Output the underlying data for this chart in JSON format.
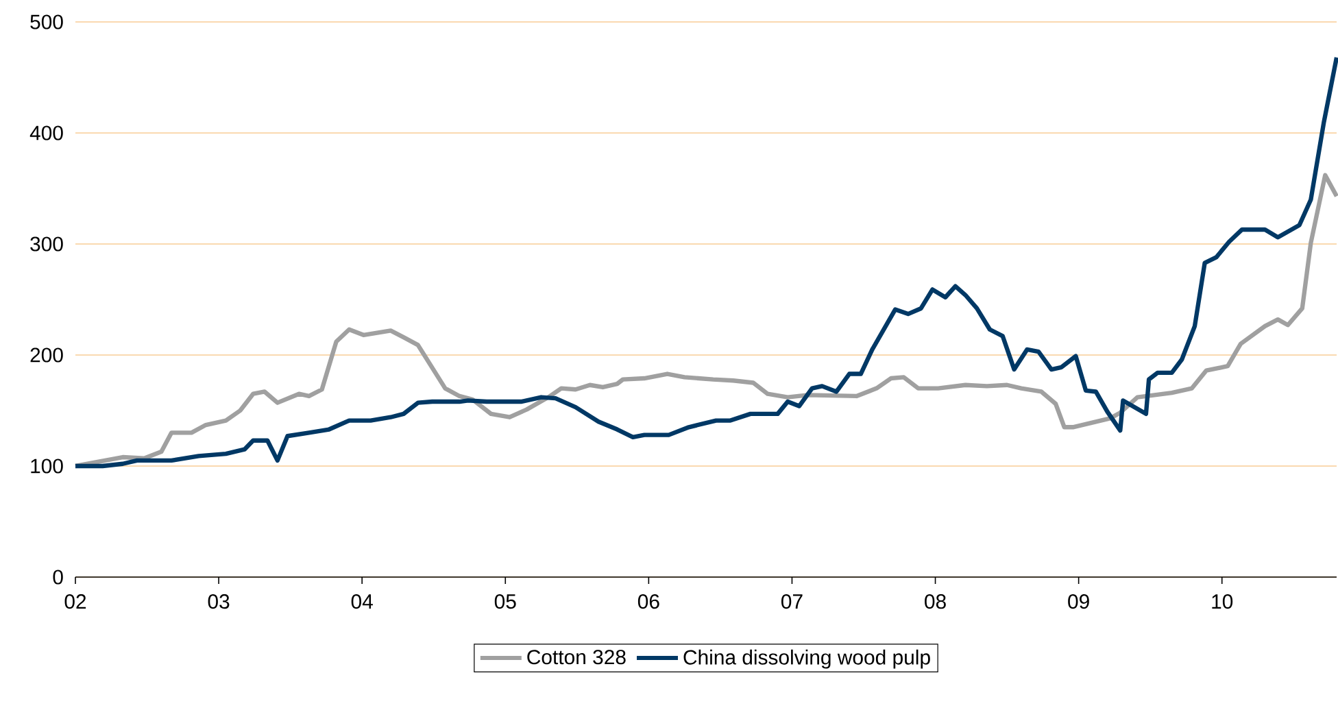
{
  "chart_data": {
    "type": "line",
    "xlim": [
      2,
      10.8
    ],
    "ylim": [
      0,
      500
    ],
    "xticks": [
      {
        "value": 2,
        "label": "02"
      },
      {
        "value": 3,
        "label": "03"
      },
      {
        "value": 4,
        "label": "04"
      },
      {
        "value": 5,
        "label": "05"
      },
      {
        "value": 6,
        "label": "06"
      },
      {
        "value": 7,
        "label": "07"
      },
      {
        "value": 8,
        "label": "08"
      },
      {
        "value": 9,
        "label": "09"
      },
      {
        "value": 10,
        "label": "10"
      }
    ],
    "yticks": [
      0,
      100,
      200,
      300,
      400,
      500
    ],
    "grid": "y",
    "legend": "bottom",
    "series": [
      {
        "name": "Cotton 328",
        "color": "#a0a0a0",
        "x": [
          2.0,
          2.33,
          2.48,
          2.6,
          2.67,
          2.81,
          2.91,
          3.05,
          3.15,
          3.24,
          3.32,
          3.41,
          3.56,
          3.63,
          3.72,
          3.82,
          3.91,
          4.01,
          4.2,
          4.29,
          4.39,
          4.58,
          4.68,
          4.77,
          4.9,
          5.03,
          5.15,
          5.3,
          5.39,
          5.49,
          5.59,
          5.68,
          5.78,
          5.82,
          5.97,
          6.13,
          6.25,
          6.45,
          6.59,
          6.73,
          6.83,
          6.97,
          7.11,
          7.45,
          7.59,
          7.69,
          7.78,
          7.88,
          8.02,
          8.21,
          8.36,
          8.5,
          8.6,
          8.74,
          8.84,
          8.9,
          8.96,
          9.22,
          9.29,
          9.41,
          9.65,
          9.79,
          9.89,
          10.04,
          10.13,
          10.3,
          10.39,
          10.46,
          10.56,
          10.62,
          10.72,
          10.8
        ],
        "values": [
          100,
          108,
          107,
          113,
          130,
          130,
          137,
          141,
          150,
          165,
          167,
          157,
          165,
          163,
          169,
          212,
          223,
          218,
          222,
          216,
          209,
          170,
          163,
          160,
          147,
          144,
          151,
          162,
          170,
          169,
          173,
          171,
          174,
          178,
          179,
          183,
          180,
          178,
          177,
          175,
          165,
          162,
          164,
          163,
          170,
          179,
          180,
          170,
          170,
          173,
          172,
          173,
          170,
          167,
          156,
          135,
          135,
          143,
          148,
          162,
          166,
          170,
          186,
          190,
          210,
          226,
          232,
          227,
          242,
          301,
          362,
          343
        ]
      },
      {
        "name": "China dissolving wood pulp",
        "color": "#003865",
        "x": [
          2.0,
          2.19,
          2.33,
          2.43,
          2.67,
          2.86,
          3.05,
          3.18,
          3.24,
          3.34,
          3.41,
          3.48,
          3.63,
          3.77,
          3.91,
          4.06,
          4.2,
          4.29,
          4.39,
          4.49,
          4.68,
          4.74,
          4.87,
          5.11,
          5.25,
          5.35,
          5.49,
          5.65,
          5.78,
          5.89,
          5.97,
          6.14,
          6.28,
          6.47,
          6.57,
          6.71,
          6.9,
          6.97,
          7.05,
          7.14,
          7.21,
          7.31,
          7.4,
          7.48,
          7.56,
          7.72,
          7.81,
          7.9,
          7.98,
          8.07,
          8.14,
          8.21,
          8.29,
          8.38,
          8.47,
          8.55,
          8.64,
          8.72,
          8.81,
          8.88,
          8.98,
          9.05,
          9.12,
          9.2,
          9.29,
          9.31,
          9.47,
          9.49,
          9.55,
          9.65,
          9.72,
          9.81,
          9.88,
          9.96,
          10.05,
          10.14,
          10.3,
          10.39,
          10.54,
          10.62,
          10.71,
          10.8
        ],
        "values": [
          100,
          100,
          102,
          105,
          105,
          109,
          111,
          115,
          123,
          123,
          105,
          127,
          130,
          133,
          141,
          141,
          144,
          147,
          157,
          158,
          158,
          159,
          158,
          158,
          162,
          161,
          153,
          140,
          133,
          126,
          128,
          128,
          135,
          141,
          141,
          147,
          147,
          158,
          154,
          170,
          172,
          167,
          183,
          183,
          205,
          241,
          237,
          242,
          259,
          252,
          262,
          254,
          242,
          223,
          217,
          187,
          205,
          203,
          187,
          189,
          199,
          168,
          167,
          149,
          132,
          159,
          147,
          178,
          184,
          184,
          196,
          226,
          283,
          288,
          302,
          313,
          313,
          306,
          317,
          340,
          409,
          468
        ]
      }
    ]
  }
}
